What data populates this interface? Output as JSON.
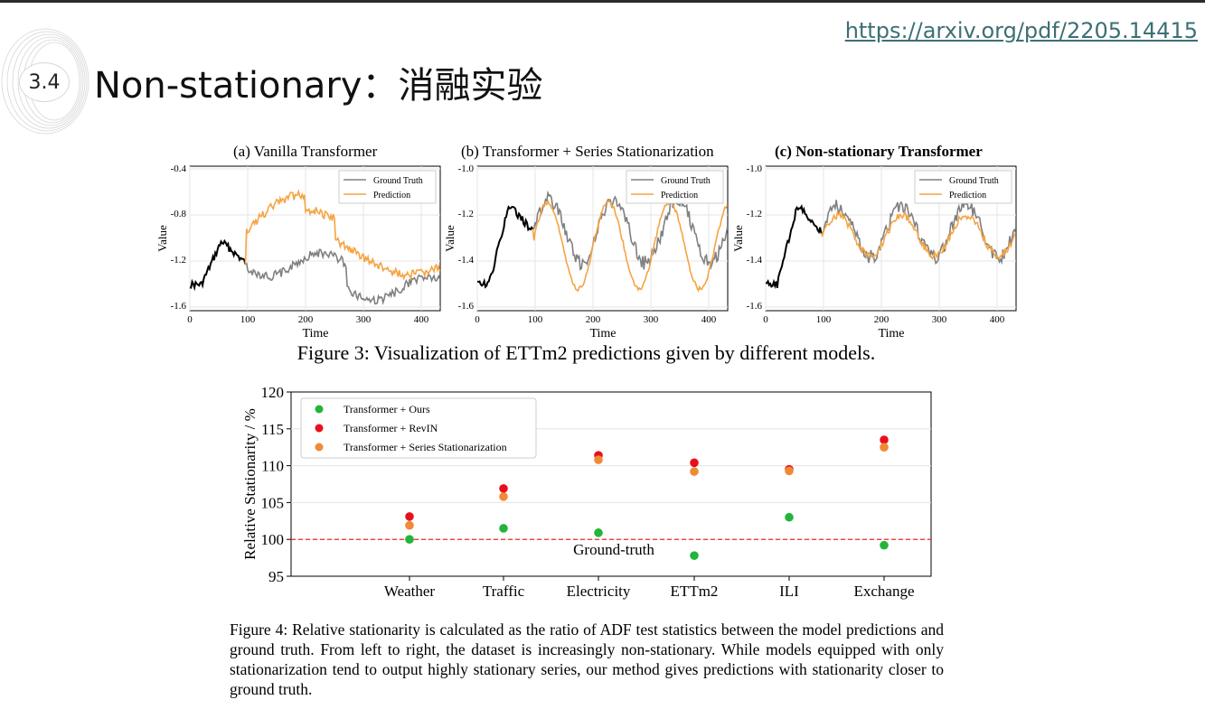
{
  "slide": {
    "url": "https://arxiv.org/pdf/2205.14415",
    "section_number": "3.4",
    "title": "Non-stationary：消融实验"
  },
  "figure3": {
    "caption": "Figure 3: Visualization of ETTm2 predictions given by different models.",
    "xlabel": "Time",
    "ylabel": "Value",
    "legend": [
      "Ground Truth",
      "Prediction"
    ],
    "x_ticks": [
      "0",
      "100",
      "200",
      "300",
      "400"
    ],
    "panels": [
      {
        "title": "(a) Vanilla Transformer",
        "y_ticks": [
          "-0.4",
          "-0.8",
          "-1.2",
          "-1.6"
        ]
      },
      {
        "title": "(b) Transformer + Series Stationarization",
        "y_ticks": [
          "-1.0",
          "-1.2",
          "-1.4",
          "-1.6"
        ]
      },
      {
        "title": "(c) Non-stationary Transformer",
        "y_ticks": [
          "-1.0",
          "-1.2",
          "-1.4",
          "-1.6"
        ]
      }
    ],
    "colors": {
      "input": "#000000",
      "ground_truth": "#808080",
      "prediction": "#f5a442"
    }
  },
  "chart_data": {
    "type": "scatter",
    "categories": [
      "Weather",
      "Traffic",
      "Electricity",
      "ETTm2",
      "ILI",
      "Exchange"
    ],
    "series": [
      {
        "name": "Transformer + Ours",
        "color": "#22b53a",
        "values": [
          100.0,
          101.5,
          100.9,
          97.8,
          103.0,
          99.2
        ]
      },
      {
        "name": "Transformer + RevIN",
        "color": "#e8101c",
        "values": [
          103.1,
          106.9,
          111.4,
          110.4,
          109.5,
          113.5
        ]
      },
      {
        "name": "Transformer + Series Stationarization",
        "color": "#f08a35",
        "values": [
          101.9,
          105.8,
          110.8,
          109.2,
          109.3,
          112.5
        ]
      }
    ],
    "ylabel": "Relative Stationarity / %",
    "ylim": [
      95,
      120
    ],
    "y_ticks": [
      "95",
      "100",
      "105",
      "110",
      "115",
      "120"
    ],
    "reference_line": {
      "value": 100,
      "label": "Ground-truth",
      "color": "#ee1111"
    },
    "legend_position": "top-left",
    "grid": true
  },
  "figure4": {
    "caption": "Figure 4: Relative stationarity is calculated as the ratio of ADF test statistics between the model predictions and ground truth. From left to right, the dataset is increasingly non-stationary. While models equipped with only stationarization tend to output highly stationary series, our method gives predictions with stationarity closer to ground truth."
  }
}
